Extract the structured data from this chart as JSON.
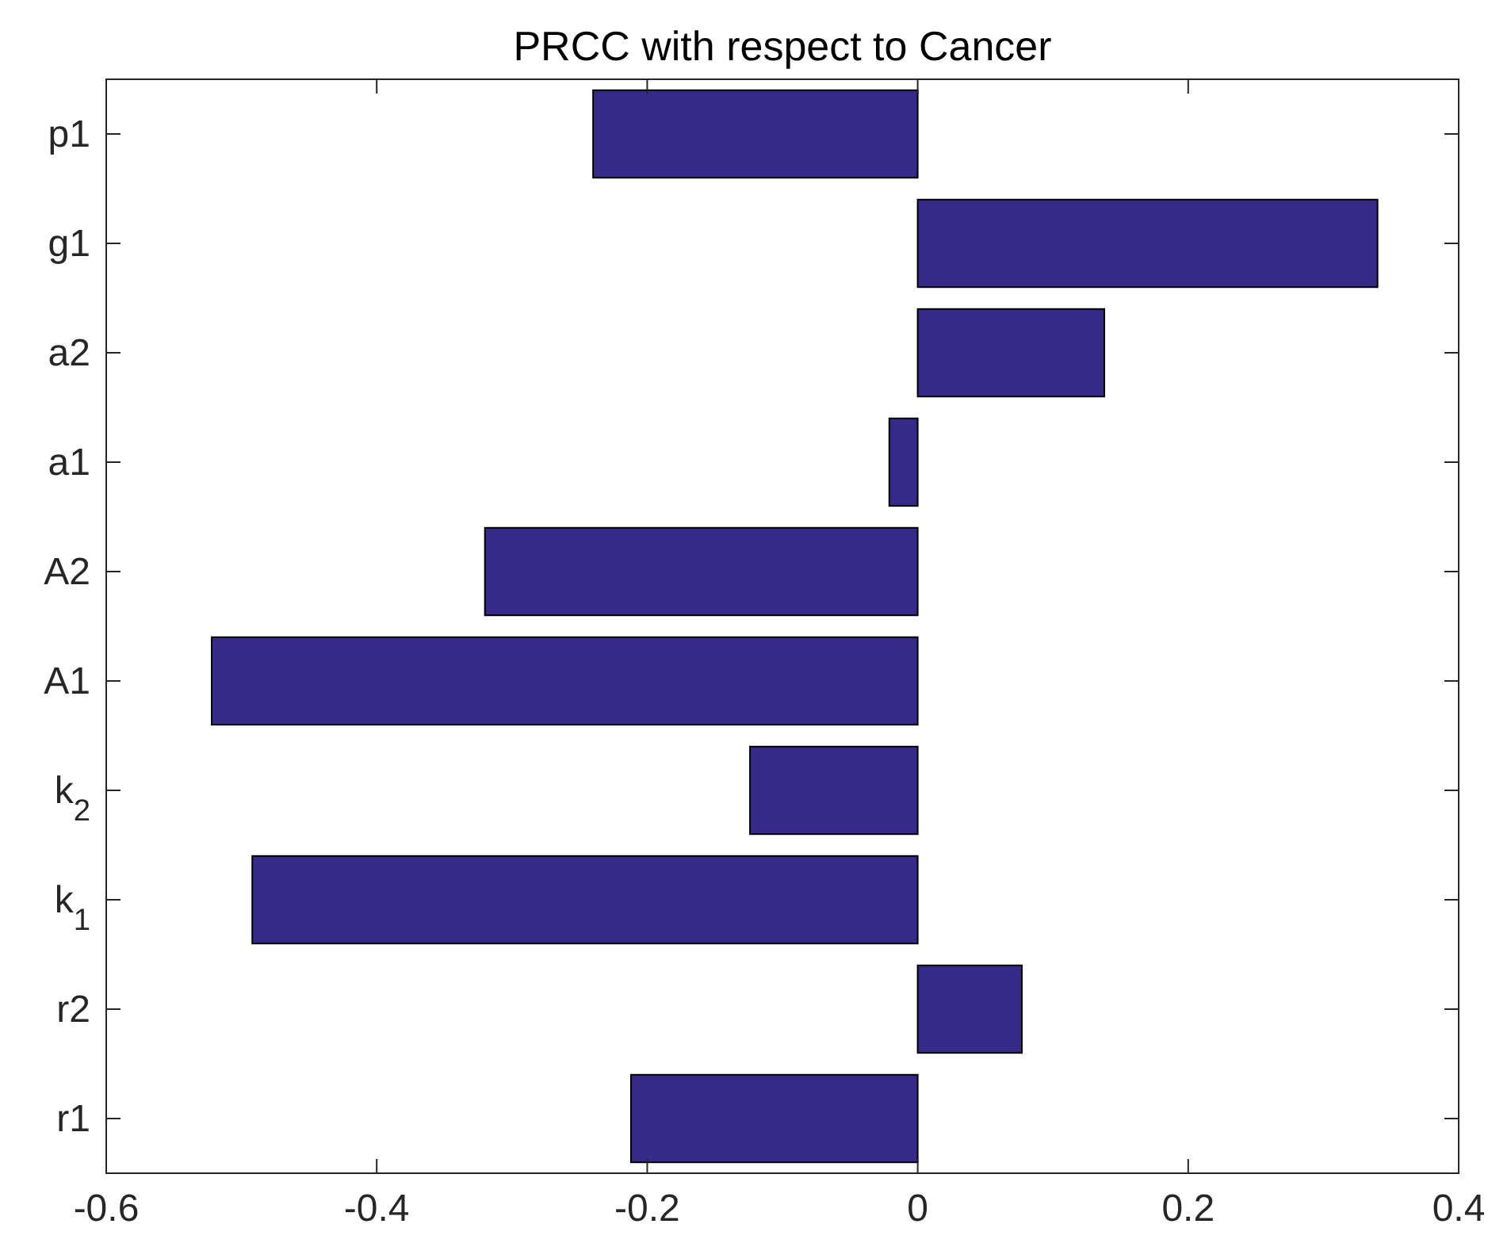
{
  "chart_data": {
    "type": "bar",
    "orientation": "horizontal",
    "title": "PRCC with respect to Cancer",
    "categories": [
      "p1",
      "g1",
      "a2",
      "a1",
      "A2",
      "A1",
      "k$_{2}$",
      "k$_{1}$",
      "r2",
      "r1"
    ],
    "values": [
      -0.24,
      0.34,
      0.138,
      -0.021,
      -0.32,
      -0.522,
      -0.124,
      -0.492,
      0.077,
      -0.212
    ],
    "color": "#352a87",
    "xlim": [
      -0.6,
      0.4
    ],
    "xticks": [
      -0.6,
      -0.4,
      -0.2,
      0,
      0.2,
      0.4
    ],
    "grid": false
  }
}
